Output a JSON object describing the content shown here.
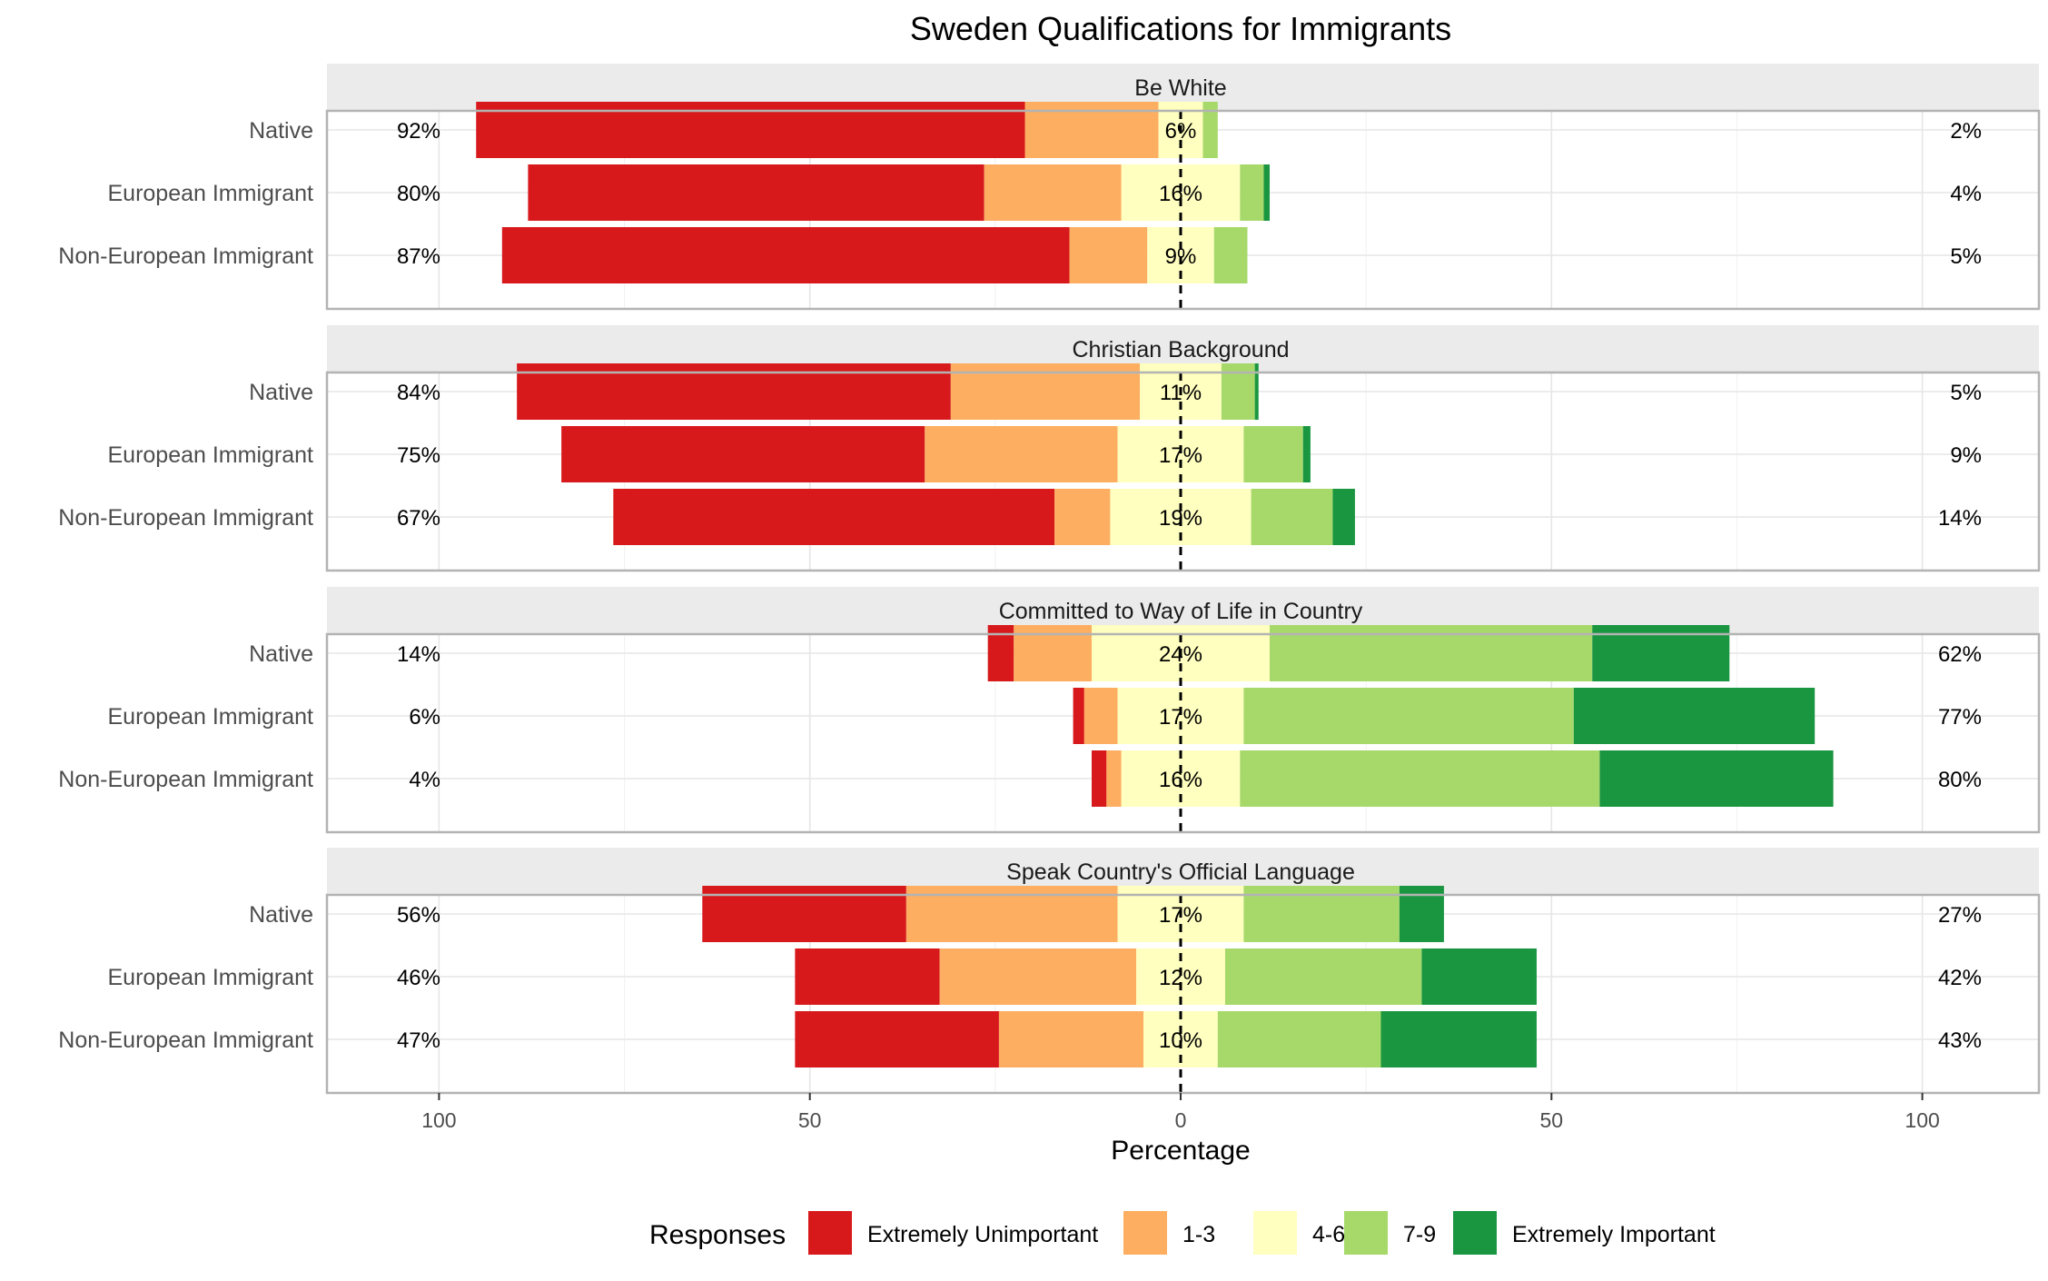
{
  "chart_data": {
    "type": "bar",
    "subtype": "diverging-stacked-likert",
    "title": "Sweden Qualifications for Immigrants",
    "xlabel": "Percentage",
    "ylabel": "",
    "xlim": [
      -115,
      115
    ],
    "x_ticks": [
      -100,
      -50,
      0,
      50,
      100
    ],
    "x_tick_labels": [
      "100",
      "50",
      "0",
      "50",
      "100"
    ],
    "grid": true,
    "legend": {
      "title": "Responses",
      "position": "bottom",
      "items": [
        {
          "name": "Extremely Unimportant",
          "color": "#d7191c"
        },
        {
          "name": "1-3",
          "color": "#fdae61"
        },
        {
          "name": "4-6",
          "color": "#ffffbf"
        },
        {
          "name": "7-9",
          "color": "#a6d96a"
        },
        {
          "name": "Extremely Important",
          "color": "#1a9641"
        }
      ]
    },
    "response_levels": [
      "Extremely Unimportant",
      "1-3",
      "4-6",
      "7-9",
      "Extremely Important"
    ],
    "groups": [
      "Native",
      "European Immigrant",
      "Non-European Immigrant"
    ],
    "panels": [
      {
        "title": "Be White",
        "rows": [
          {
            "group": "Native",
            "values": [
              74,
              18,
              6,
              2,
              0
            ],
            "left_pct": "92%",
            "mid_pct": "6%",
            "right_pct": "2%"
          },
          {
            "group": "European Immigrant",
            "values": [
              61.5,
              18.5,
              16,
              3.2,
              0.8
            ],
            "left_pct": "80%",
            "mid_pct": "16%",
            "right_pct": "4%"
          },
          {
            "group": "Non-European Immigrant",
            "values": [
              76.5,
              10.5,
              9,
              4.5,
              0
            ],
            "left_pct": "87%",
            "mid_pct": "9%",
            "right_pct": "5%"
          }
        ]
      },
      {
        "title": "Christian Background",
        "rows": [
          {
            "group": "Native",
            "values": [
              58.5,
              25.5,
              11,
              4.5,
              0.5
            ],
            "left_pct": "84%",
            "mid_pct": "11%",
            "right_pct": "5%"
          },
          {
            "group": "European Immigrant",
            "values": [
              49,
              26,
              17,
              8,
              1
            ],
            "left_pct": "75%",
            "mid_pct": "17%",
            "right_pct": "9%"
          },
          {
            "group": "Non-European Immigrant",
            "values": [
              59.5,
              7.5,
              19,
              11,
              3
            ],
            "left_pct": "67%",
            "mid_pct": "19%",
            "right_pct": "14%"
          }
        ]
      },
      {
        "title": "Committed to Way of Life in Country",
        "rows": [
          {
            "group": "Native",
            "values": [
              3.5,
              10.5,
              24,
              43.5,
              18.5
            ],
            "left_pct": "14%",
            "mid_pct": "24%",
            "right_pct": "62%"
          },
          {
            "group": "European Immigrant",
            "values": [
              1.5,
              4.5,
              17,
              44.5,
              32.5
            ],
            "left_pct": "6%",
            "mid_pct": "17%",
            "right_pct": "77%"
          },
          {
            "group": "Non-European Immigrant",
            "values": [
              2,
              2,
              16,
              48.5,
              31.5
            ],
            "left_pct": "4%",
            "mid_pct": "16%",
            "right_pct": "80%"
          }
        ]
      },
      {
        "title": "Speak Country's Official Language",
        "rows": [
          {
            "group": "Native",
            "values": [
              27.5,
              28.5,
              17,
              21,
              6
            ],
            "left_pct": "56%",
            "mid_pct": "17%",
            "right_pct": "27%"
          },
          {
            "group": "European Immigrant",
            "values": [
              19.5,
              26.5,
              12,
              26.5,
              15.5
            ],
            "left_pct": "46%",
            "mid_pct": "12%",
            "right_pct": "42%"
          },
          {
            "group": "Non-European Immigrant",
            "values": [
              27.5,
              19.5,
              10,
              22,
              21
            ],
            "left_pct": "47%",
            "mid_pct": "10%",
            "right_pct": "43%"
          }
        ]
      }
    ]
  }
}
